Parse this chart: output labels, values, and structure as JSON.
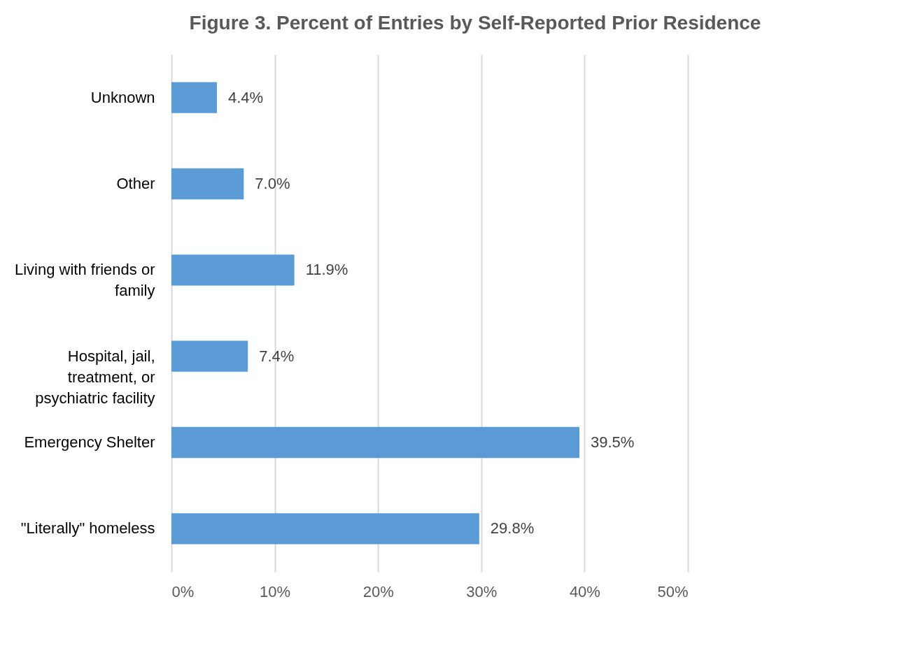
{
  "chart_data": {
    "type": "bar",
    "orientation": "horizontal",
    "title": "Figure 3. Percent of Entries by Self-Reported Prior Residence",
    "categories": [
      "Unknown",
      "Other",
      "Living with friends or family",
      "Hospital, jail, treatment, or psychiatric facility",
      "Emergency Shelter",
      "\"Literally\" homeless"
    ],
    "values": [
      4.4,
      7.0,
      11.9,
      7.4,
      39.5,
      29.8
    ],
    "value_labels": [
      "4.4%",
      "7.0%",
      "11.9%",
      "7.4%",
      "39.5%",
      "29.8%"
    ],
    "color": "#5b9bd5",
    "xlim": [
      0,
      50
    ],
    "xticks": [
      {
        "value": 0,
        "label": "0%"
      },
      {
        "value": 10,
        "label": "10%"
      },
      {
        "value": 20,
        "label": "20%"
      },
      {
        "value": 30,
        "label": "30%"
      },
      {
        "value": 40,
        "label": "40%"
      },
      {
        "value": 50,
        "label": "50%"
      }
    ],
    "grid": "x"
  }
}
